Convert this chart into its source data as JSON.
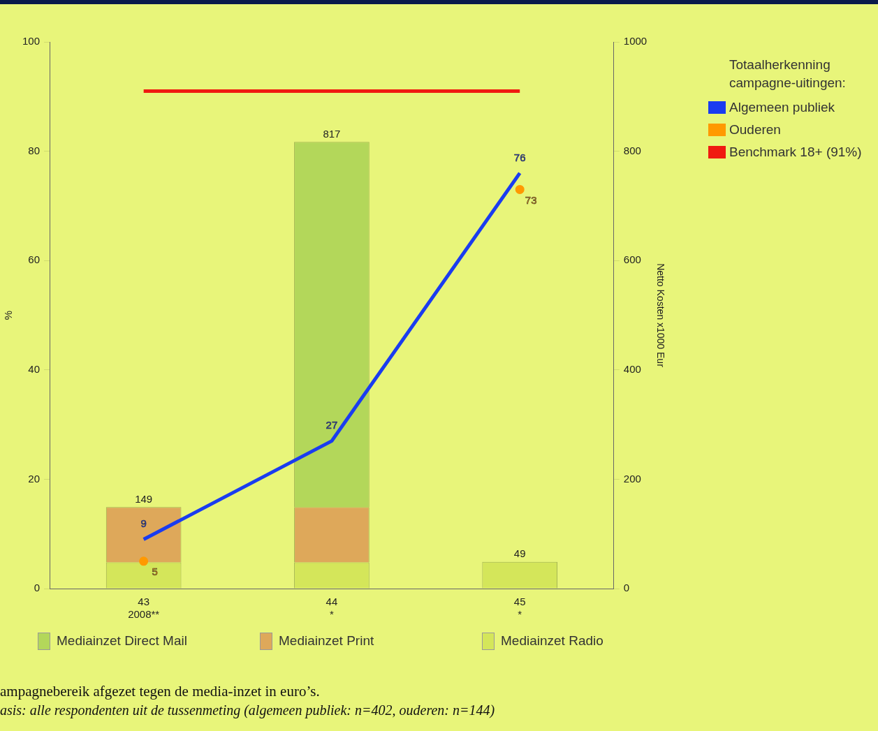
{
  "chart_data": {
    "type": "bar",
    "stacked": true,
    "ylabel": "%",
    "y2label": "Netto Kosten x1000 Eur",
    "legend_title": "Totaalherkenning\ncampagne-uitingen:",
    "legend": "right",
    "grid": false,
    "categories": [
      "43\n2008**",
      "44\n*",
      "45\n*"
    ],
    "ylim": [
      0,
      100
    ],
    "yticks": [
      0,
      20,
      40,
      60,
      80,
      100
    ],
    "y2lim": [
      0,
      1000
    ],
    "y2ticks": [
      0,
      200,
      400,
      600,
      800,
      1000
    ],
    "series": [
      {
        "name": "Mediainzet Radio",
        "axis": "y2",
        "color": "#d4e65a",
        "values": [
          48,
          48,
          49
        ]
      },
      {
        "name": "Mediainzet Print",
        "axis": "y2",
        "color": "#dea85a",
        "values": [
          101,
          101,
          null
        ]
      },
      {
        "name": "Mediainzet Direct Mail",
        "axis": "y2",
        "color": "#b3d75a",
        "values": [
          null,
          668,
          null
        ]
      },
      {
        "name": "Algemeen publiek",
        "type": "line",
        "axis": "y",
        "color": "#1a3cf0",
        "values": [
          9,
          27,
          76
        ],
        "value_labels": [
          "9",
          "27",
          "76"
        ]
      },
      {
        "name": "Ouderen",
        "type": "scatter",
        "axis": "y",
        "color": "#ff9900",
        "values": [
          5,
          null,
          73
        ],
        "marker": "circle",
        "value_labels": [
          "5",
          null,
          "73"
        ]
      },
      {
        "name": "Benchmark 18+ (91%)",
        "type": "line",
        "axis": "y",
        "color": "#f01a10",
        "values": [
          91,
          91,
          91
        ]
      }
    ],
    "totals": [
      "149",
      "817",
      "49"
    ],
    "annotations": [
      "ampagnebereik afgezet tegen de media-inzet in euro’s.",
      "asis: alle respondenten uit de tussenmeting (algemeen publiek: n=402, ouderen: n=144)"
    ]
  }
}
